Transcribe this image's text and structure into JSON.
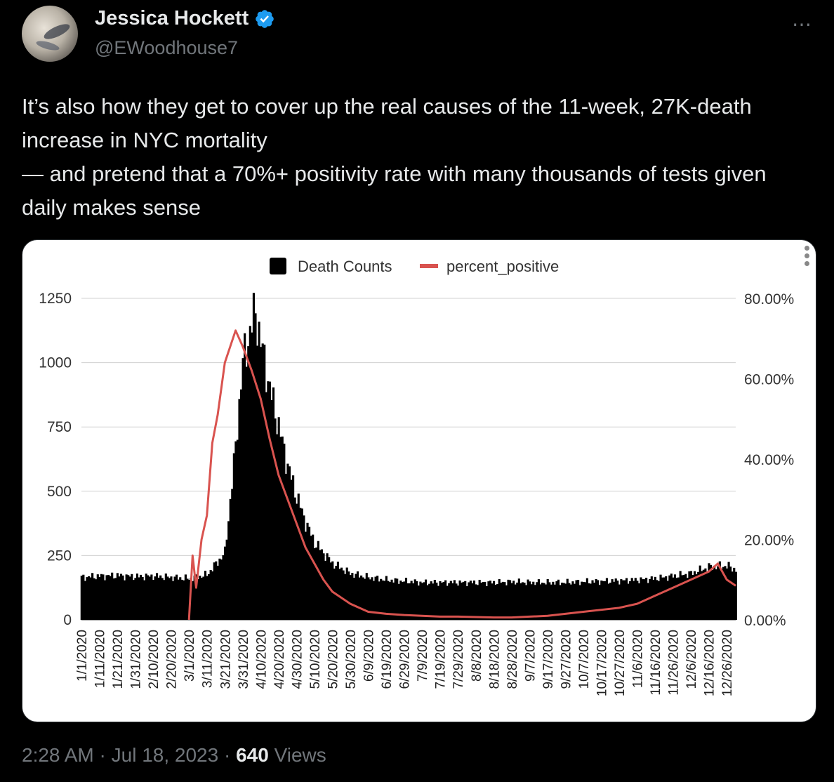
{
  "author": {
    "display_name": "Jessica Hockett",
    "handle": "@EWoodhouse7",
    "verified": true
  },
  "more_icon": "⋯",
  "tweet_text": "It’s also how they get to cover up the real causes of the 11-week, 27K-death increase in NYC mortality\n— and pretend that a 70%+ positivity rate with many thousands of tests given daily makes sense",
  "meta": {
    "time": "2:28 AM",
    "sep1": " · ",
    "date": "Jul 18, 2023",
    "sep2": " · ",
    "views_count": "640",
    "views_label": " Views"
  },
  "colors": {
    "accent_verified": "#1d9bf0",
    "death_series": "#000000",
    "positive_series": "#d9534f"
  },
  "chart_data": {
    "type": "bar",
    "legend": [
      "Death Counts",
      "percent_positive"
    ],
    "legend_position": "top",
    "x_tick_labels": [
      "1/1/2020",
      "1/11/2020",
      "1/21/2020",
      "1/31/2020",
      "2/10/2020",
      "2/20/2020",
      "3/1/2020",
      "3/11/2020",
      "3/21/2020",
      "3/31/2020",
      "4/10/2020",
      "4/20/2020",
      "4/30/2020",
      "5/10/2020",
      "5/20/2020",
      "5/30/2020",
      "6/9/2020",
      "6/19/2020",
      "6/29/2020",
      "7/9/2020",
      "7/19/2020",
      "7/29/2020",
      "8/8/2020",
      "8/18/2020",
      "8/28/2020",
      "9/7/2020",
      "9/17/2020",
      "9/27/2020",
      "10/7/2020",
      "10/17/2020",
      "10/27/2020",
      "11/6/2020",
      "11/16/2020",
      "11/26/2020",
      "12/6/2020",
      "12/16/2020",
      "12/26/2020"
    ],
    "y_left_ticks": [
      "0",
      "250",
      "500",
      "750",
      "1000",
      "1250"
    ],
    "y_left_lim": [
      0,
      1250
    ],
    "y_right_ticks": [
      "0.00%",
      "20.00%",
      "40.00%",
      "60.00%",
      "80.00%"
    ],
    "y_right_lim": [
      0,
      80
    ],
    "grid": true,
    "series": [
      {
        "name": "Death Counts",
        "type": "bar",
        "x": [
          "1/1/2020",
          "1/11/2020",
          "1/21/2020",
          "1/31/2020",
          "2/10/2020",
          "2/20/2020",
          "3/1/2020",
          "3/11/2020",
          "3/21/2020",
          "3/26/2020",
          "3/31/2020",
          "4/5/2020",
          "4/7/2020",
          "4/10/2020",
          "4/15/2020",
          "4/20/2020",
          "4/25/2020",
          "4/30/2020",
          "5/5/2020",
          "5/10/2020",
          "5/20/2020",
          "5/30/2020",
          "6/9/2020",
          "6/19/2020",
          "6/29/2020",
          "7/9/2020",
          "7/19/2020",
          "7/29/2020",
          "8/8/2020",
          "8/18/2020",
          "8/28/2020",
          "9/7/2020",
          "9/17/2020",
          "9/27/2020",
          "10/7/2020",
          "10/17/2020",
          "10/27/2020",
          "11/6/2020",
          "11/16/2020",
          "11/26/2020",
          "12/6/2020",
          "12/16/2020",
          "12/26/2020",
          "12/31/2020"
        ],
        "values": [
          165,
          170,
          172,
          168,
          170,
          165,
          160,
          175,
          260,
          600,
          1000,
          1150,
          1200,
          1080,
          900,
          750,
          600,
          480,
          380,
          300,
          220,
          180,
          165,
          155,
          150,
          145,
          145,
          145,
          145,
          145,
          148,
          145,
          145,
          145,
          148,
          150,
          152,
          155,
          160,
          170,
          180,
          205,
          210,
          195
        ]
      },
      {
        "name": "percent_positive",
        "type": "line",
        "x": [
          "3/1/2020",
          "3/3/2020",
          "3/5/2020",
          "3/8/2020",
          "3/11/2020",
          "3/14/2020",
          "3/17/2020",
          "3/21/2020",
          "3/24/2020",
          "3/27/2020",
          "3/31/2020",
          "4/5/2020",
          "4/10/2020",
          "4/15/2020",
          "4/20/2020",
          "4/25/2020",
          "4/30/2020",
          "5/5/2020",
          "5/10/2020",
          "5/15/2020",
          "5/20/2020",
          "5/30/2020",
          "6/9/2020",
          "6/19/2020",
          "6/29/2020",
          "7/9/2020",
          "7/19/2020",
          "7/29/2020",
          "8/8/2020",
          "8/18/2020",
          "8/28/2020",
          "9/7/2020",
          "9/17/2020",
          "9/27/2020",
          "10/7/2020",
          "10/17/2020",
          "10/27/2020",
          "11/6/2020",
          "11/16/2020",
          "11/26/2020",
          "12/6/2020",
          "12/16/2020",
          "12/21/2020",
          "12/26/2020",
          "12/31/2020"
        ],
        "values": [
          0,
          16,
          8,
          20,
          26,
          44,
          51,
          64,
          68,
          72,
          68,
          62,
          55,
          45,
          36,
          30,
          24,
          18,
          14,
          10,
          7,
          4,
          2,
          1.5,
          1.2,
          1.0,
          0.8,
          0.8,
          0.7,
          0.6,
          0.6,
          0.8,
          1.0,
          1.5,
          2.0,
          2.5,
          3.0,
          4.0,
          6.0,
          8.0,
          10.0,
          12.0,
          14.0,
          10.0,
          8.5
        ]
      }
    ]
  }
}
